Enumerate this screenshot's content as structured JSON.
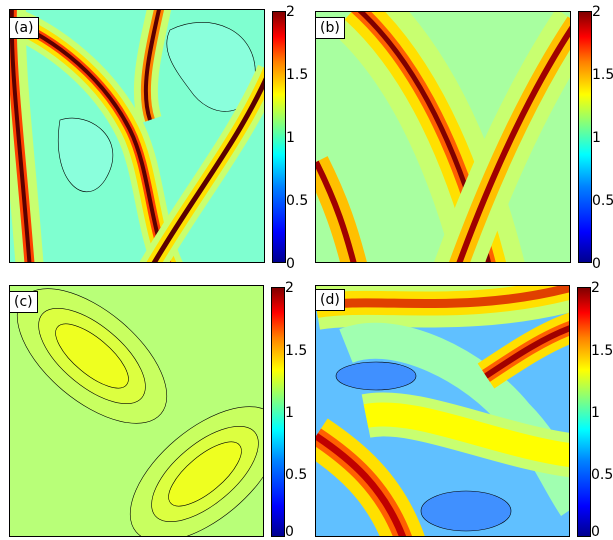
{
  "chart_data": [
    {
      "type": "heatmap",
      "panel": "(a)",
      "colorbar": {
        "min": 0,
        "max": 2,
        "ticks": [
          "0",
          "0.5",
          "1",
          "1.5",
          "2"
        ]
      },
      "field_description": "narrow high-value filaments on a background near 1",
      "background_value": 0.9
    },
    {
      "type": "heatmap",
      "panel": "(b)",
      "colorbar": {
        "min": 0,
        "max": 2,
        "ticks": [
          "0",
          "0.5",
          "1",
          "1.5",
          "2"
        ]
      },
      "field_description": "crossing diagonal ridges with broad shoulders",
      "background_value": 1.05
    },
    {
      "type": "heatmap",
      "panel": "(c)",
      "colorbar": {
        "min": 0,
        "max": 2,
        "ticks": [
          "0",
          "0.5",
          "1",
          "1.5",
          "2"
        ]
      },
      "field_description": "two smooth elongated maxima near 1.3",
      "background_value": 1.1
    },
    {
      "type": "heatmap",
      "panel": "(d)",
      "colorbar": {
        "min": 0,
        "max": 2,
        "ticks": [
          "0",
          "0.5",
          "1",
          "1.5",
          "2"
        ]
      },
      "field_description": "banded pattern with highs near 1.8 and lows near 0.6",
      "background_value": 1.0
    }
  ],
  "colorscale": [
    "#00008f",
    "#0000ff",
    "#0080ff",
    "#00ffff",
    "#80ff80",
    "#ffff00",
    "#ff8000",
    "#ff0000",
    "#800000"
  ]
}
